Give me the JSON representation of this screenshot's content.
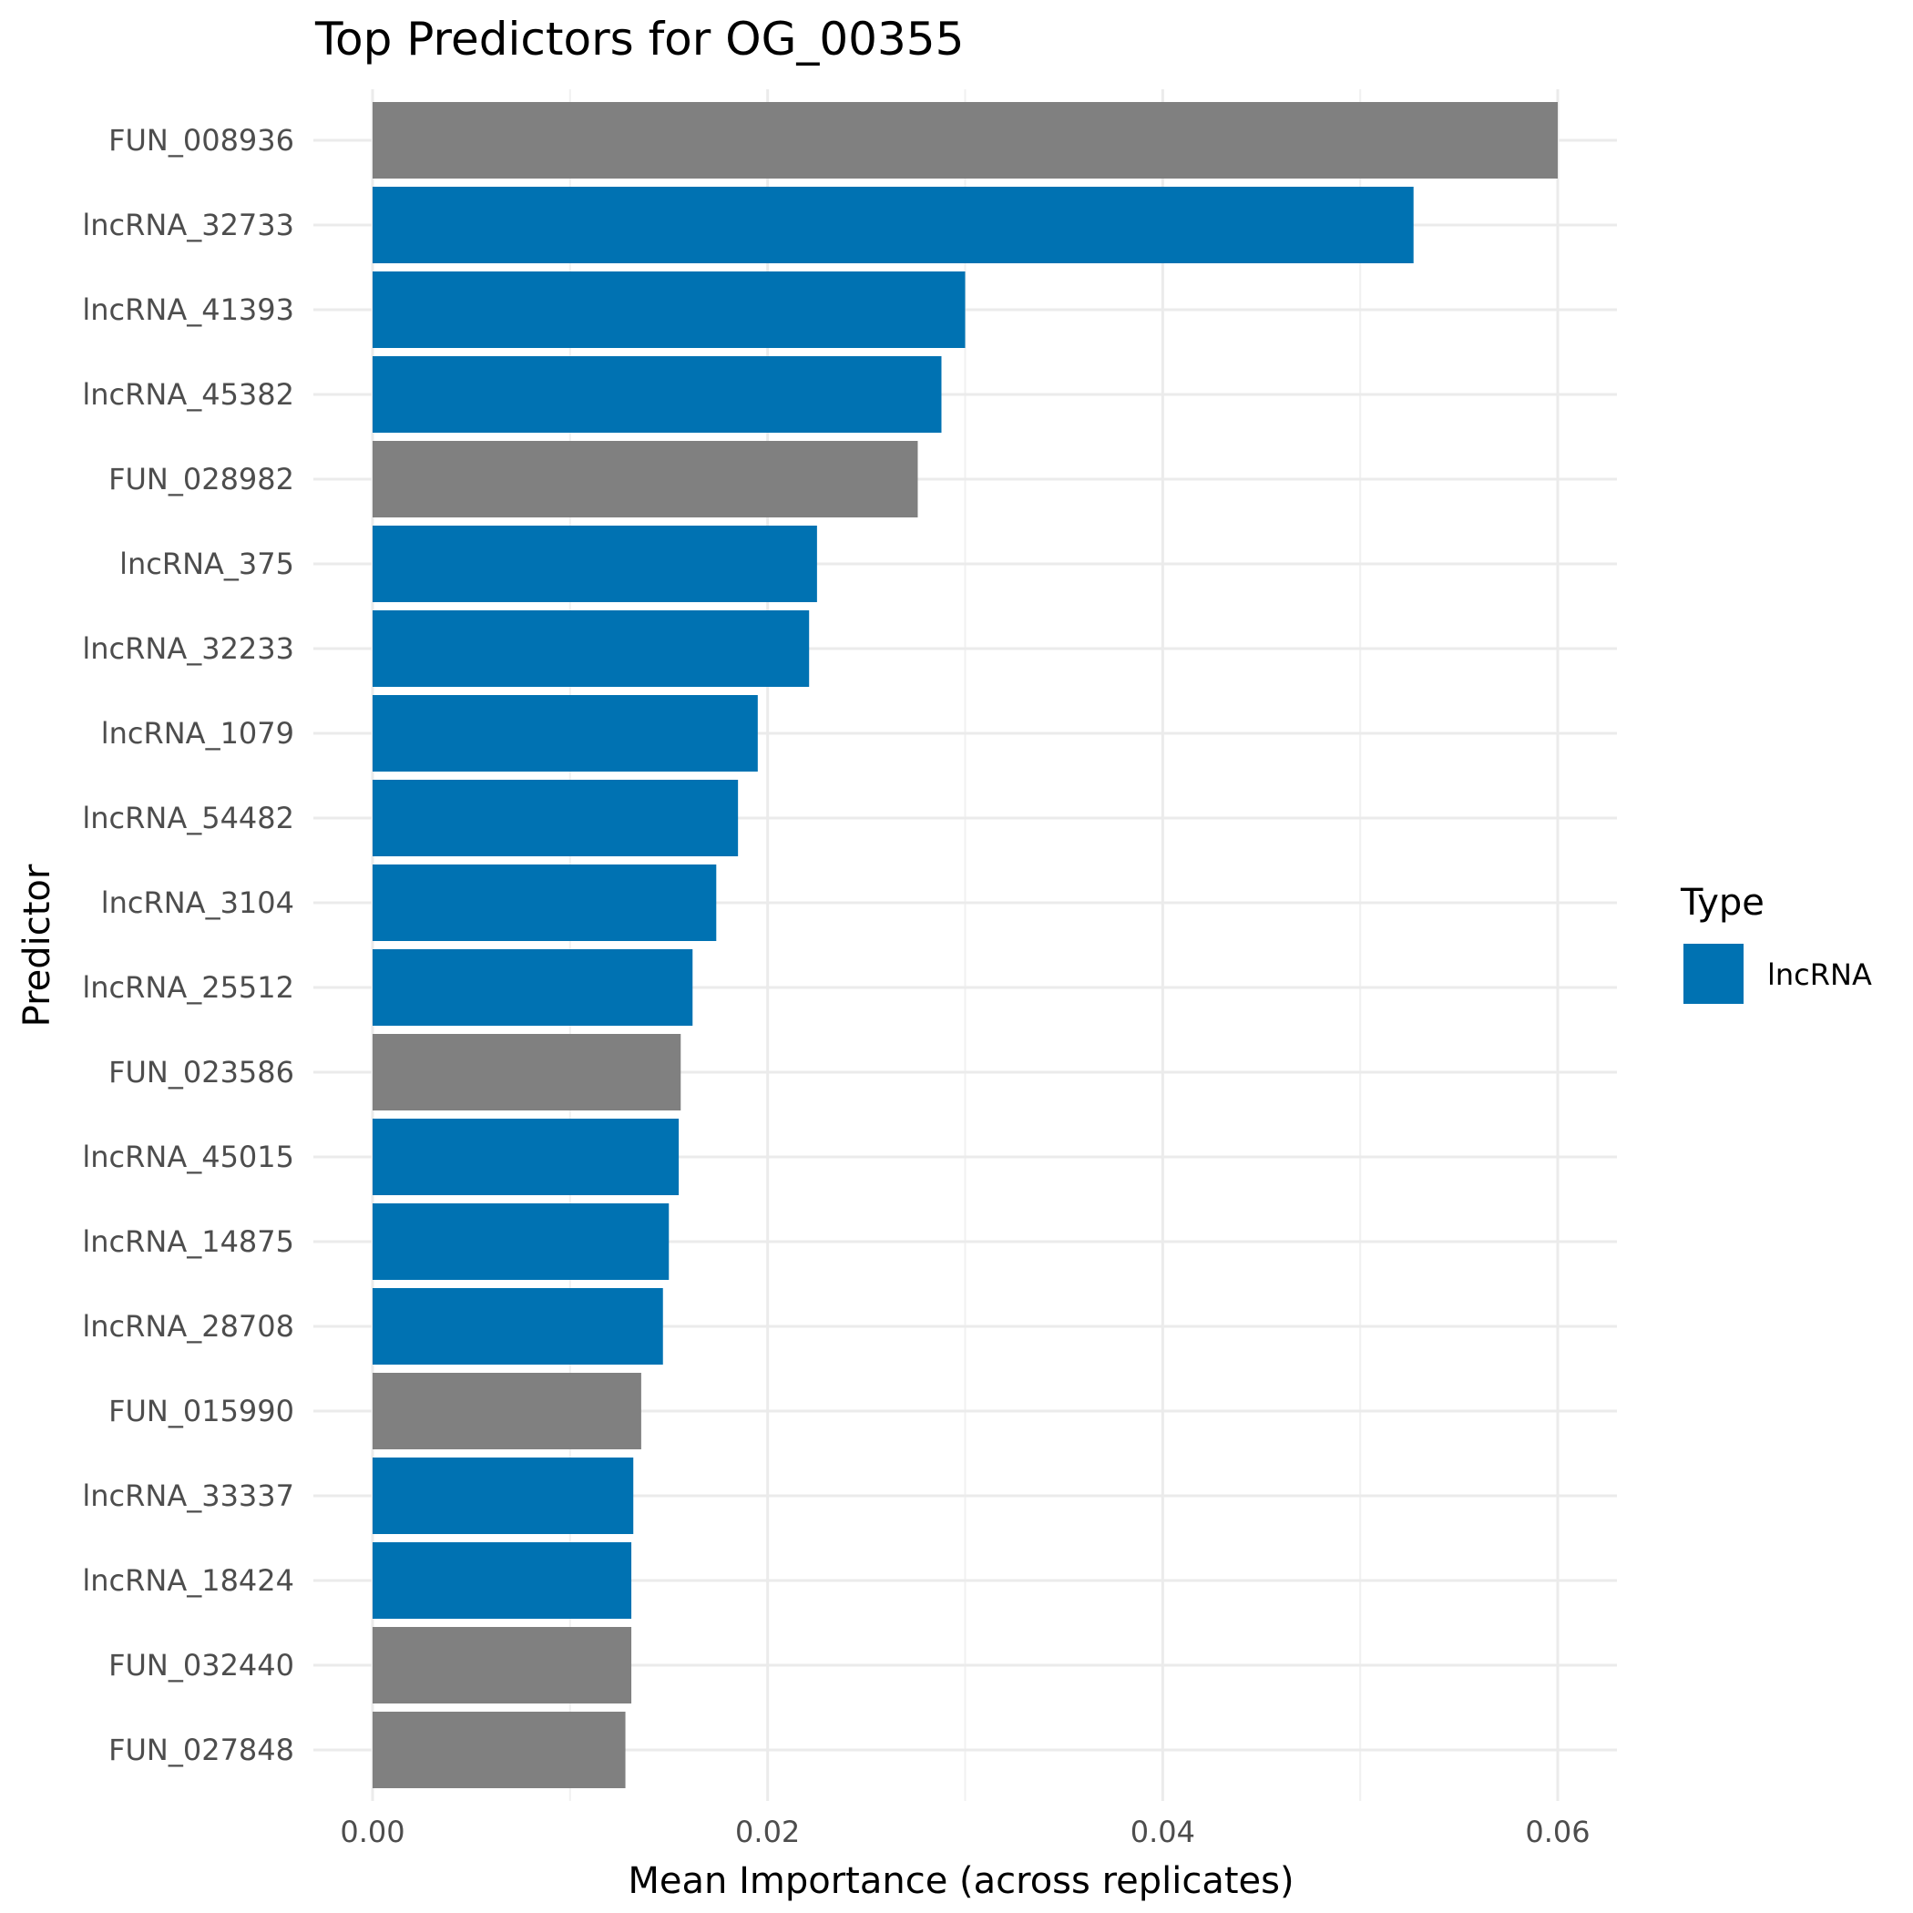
{
  "chart_data": {
    "type": "bar",
    "orientation": "horizontal",
    "title": "Top Predictors for OG_00355",
    "xlabel": "Mean Importance (across replicates)",
    "ylabel": "Predictor",
    "xlim": [
      0,
      0.063
    ],
    "xticks": [
      {
        "value": 0.0,
        "label": "0.00"
      },
      {
        "value": 0.02,
        "label": "0.02"
      },
      {
        "value": 0.04,
        "label": "0.04"
      },
      {
        "value": 0.06,
        "label": "0.06"
      }
    ],
    "minor_gridlines": [
      0.01,
      0.03,
      0.05
    ],
    "grid": true,
    "legend": {
      "title": "Type",
      "position": "right",
      "entries": [
        {
          "label": "lncRNA",
          "color": "#0072B2"
        }
      ]
    },
    "colors": {
      "lncRNA": "#0072B2",
      "other": "#808080"
    },
    "categories": [
      "FUN_008936",
      "lncRNA_32733",
      "lncRNA_41393",
      "lncRNA_45382",
      "FUN_028982",
      "lncRNA_375",
      "lncRNA_32233",
      "lncRNA_1079",
      "lncRNA_54482",
      "lncRNA_3104",
      "lncRNA_25512",
      "FUN_023586",
      "lncRNA_45015",
      "lncRNA_14875",
      "lncRNA_28708",
      "FUN_015990",
      "lncRNA_33337",
      "lncRNA_18424",
      "FUN_032440",
      "FUN_027848"
    ],
    "values": [
      0.06,
      0.0527,
      0.03,
      0.0288,
      0.0276,
      0.0225,
      0.0221,
      0.0195,
      0.0185,
      0.0174,
      0.0162,
      0.0156,
      0.0155,
      0.015,
      0.0147,
      0.0136,
      0.0132,
      0.0131,
      0.0131,
      0.0128
    ],
    "types": [
      "other",
      "lncRNA",
      "lncRNA",
      "lncRNA",
      "other",
      "lncRNA",
      "lncRNA",
      "lncRNA",
      "lncRNA",
      "lncRNA",
      "lncRNA",
      "other",
      "lncRNA",
      "lncRNA",
      "lncRNA",
      "other",
      "lncRNA",
      "lncRNA",
      "other",
      "other"
    ]
  }
}
